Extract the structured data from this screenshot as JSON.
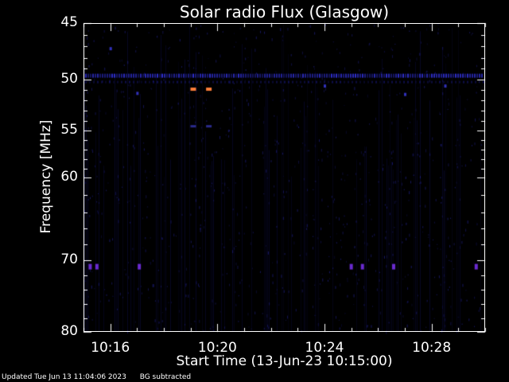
{
  "chart_data": {
    "type": "heatmap",
    "title": "Solar radio Flux (Glasgow)",
    "ylabel": "Frequency [MHz]",
    "xlabel": "Start Time (13-Jun-23 10:15:00)",
    "y_tick_labels": [
      "45",
      "50",
      "55",
      "60",
      "70",
      "80"
    ],
    "y_ticks": [
      45,
      50,
      55,
      60,
      70,
      80
    ],
    "ylim": [
      45,
      80
    ],
    "y_scale": "log",
    "y_inverted": true,
    "x_tick_labels": [
      "10:16",
      "10:20",
      "10:24",
      "10:28"
    ],
    "x_ticks": [
      "10:16",
      "10:20",
      "10:24",
      "10:28"
    ],
    "xlim": [
      "10:15:00",
      "10:30:00"
    ],
    "colormap": "black-blue-purple-orange",
    "features": [
      {
        "name": "persistent band",
        "freq_mhz": 49.6,
        "intensity": "low"
      },
      {
        "name": "burst",
        "time": "10:19:05",
        "freq_mhz": 50.9,
        "intensity": "high"
      },
      {
        "name": "burst",
        "time": "10:19:40",
        "freq_mhz": 50.9,
        "intensity": "high"
      },
      {
        "name": "interference",
        "freq_mhz": 70.8,
        "intensity": "medium"
      }
    ]
  },
  "footer": {
    "updated": "Updated Tue Jun 13 11:04:06 2023",
    "note": "BG subtracted"
  },
  "colors": {
    "background": "#000000",
    "text": "#ffffff",
    "low": "#1a1a8a",
    "mid": "#6a2ad0",
    "high": "#ff7f3a"
  }
}
